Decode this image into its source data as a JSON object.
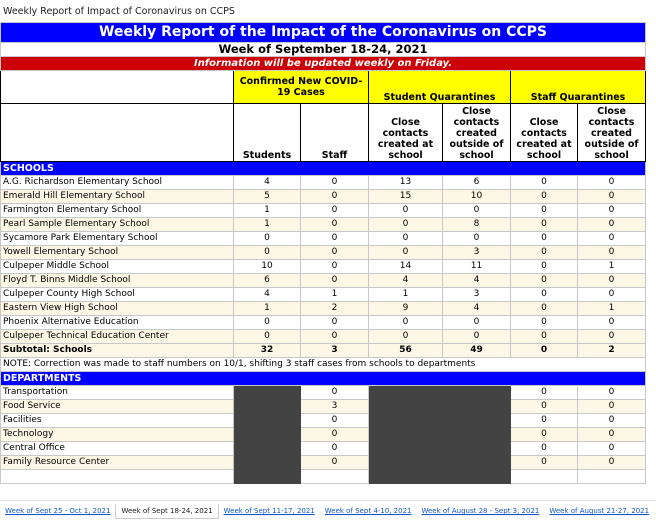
{
  "page_title": "Weekly Report of Impact of Coronavirus on CCPS",
  "report": {
    "title": "Weekly Report of the Impact of the Coronavirus on CCPS",
    "week": "Week of September 18-24, 2021",
    "notice": "Information will be updated weekly on Friday."
  },
  "headers": {
    "cases": "Confirmed New COVID-19 Cases",
    "student_quarantines": "Student Quarantines",
    "staff_quarantines": "Staff Quarantines",
    "columns": [
      "Students",
      "Staff",
      "Close contacts created at school",
      "Close contacts created outside of school",
      "Close contacts created at school",
      "Close contacts created outside of school"
    ]
  },
  "schools": {
    "label": "SCHOOLS",
    "rows": [
      {
        "name": "A.G. Richardson Elementary School",
        "values": [
          4,
          0,
          13,
          6,
          0,
          0
        ]
      },
      {
        "name": "Emerald Hill Elementary School",
        "values": [
          5,
          0,
          15,
          10,
          0,
          0
        ]
      },
      {
        "name": "Farmington Elementary School",
        "values": [
          1,
          0,
          0,
          0,
          0,
          0
        ]
      },
      {
        "name": "Pearl Sample Elementary School",
        "values": [
          1,
          0,
          0,
          8,
          0,
          0
        ]
      },
      {
        "name": "Sycamore Park Elementary School",
        "values": [
          0,
          0,
          0,
          0,
          0,
          0
        ]
      },
      {
        "name": "Yowell Elementary School",
        "values": [
          0,
          0,
          0,
          3,
          0,
          0
        ]
      },
      {
        "name": "Culpeper Middle School",
        "values": [
          10,
          0,
          14,
          11,
          0,
          1
        ]
      },
      {
        "name": "Floyd T. Binns Middle School",
        "values": [
          6,
          0,
          4,
          4,
          0,
          0
        ]
      },
      {
        "name": "Culpeper County High School",
        "values": [
          4,
          1,
          1,
          3,
          0,
          0
        ]
      },
      {
        "name": "Eastern View High School",
        "values": [
          1,
          2,
          9,
          4,
          0,
          1
        ]
      },
      {
        "name": "Phoenix Alternative Education",
        "values": [
          0,
          0,
          0,
          0,
          0,
          0
        ]
      },
      {
        "name": "Culpeper Technical Education Center",
        "values": [
          0,
          0,
          0,
          0,
          0,
          0
        ]
      }
    ],
    "subtotal": {
      "name": "Subtotal: Schools",
      "values": [
        32,
        3,
        56,
        49,
        0,
        2
      ]
    }
  },
  "note": "NOTE: Correction was made to staff numbers on 10/1, shifting 3 staff cases from schools to departments",
  "departments": {
    "label": "DEPARTMENTS",
    "rows": [
      {
        "name": "Transportation",
        "staff": 0,
        "staff_quarantines": [
          0,
          0
        ]
      },
      {
        "name": "Food Service",
        "staff": 3,
        "staff_quarantines": [
          0,
          0
        ]
      },
      {
        "name": "Facilities",
        "staff": 0,
        "staff_quarantines": [
          0,
          0
        ]
      },
      {
        "name": "Technology",
        "staff": 0,
        "staff_quarantines": [
          0,
          0
        ]
      },
      {
        "name": "Central Office",
        "staff": 0,
        "staff_quarantines": [
          0,
          0
        ]
      },
      {
        "name": "Family Resource Center",
        "staff": 0,
        "staff_quarantines": [
          0,
          0
        ]
      }
    ]
  },
  "tabs": [
    "Week of Sept 25 - Oct 1, 2021",
    "Week of Sept 18-24, 2021",
    "Week of Sept 11-17, 2021",
    "Week of Sept 4-10, 2021",
    "Week of August 28 - Sept 3, 2021",
    "Week of August 21-27, 2021"
  ],
  "active_tab": 1
}
